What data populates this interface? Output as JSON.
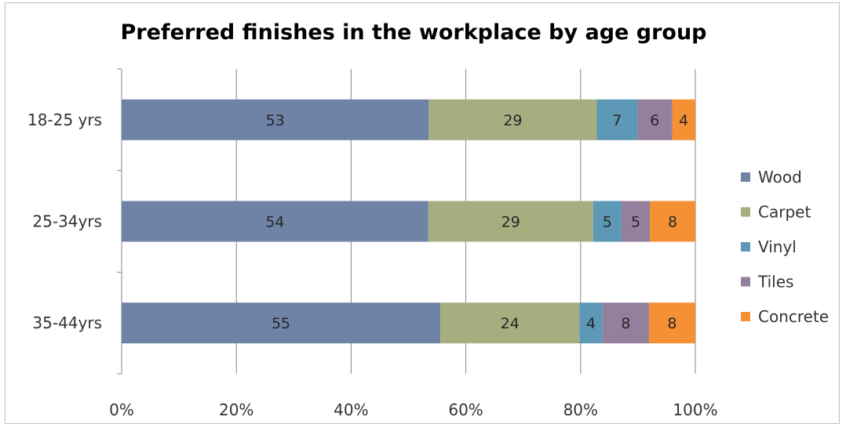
{
  "chart_data": {
    "type": "bar",
    "orientation": "horizontal",
    "stacked": "percent",
    "title": "Preferred finishes in the workplace by age group",
    "xlabel": "",
    "ylabel": "",
    "xlim": [
      0,
      100
    ],
    "x_ticks": [
      "0%",
      "20%",
      "40%",
      "60%",
      "80%",
      "100%"
    ],
    "categories": [
      "18-25 yrs",
      "25-34yrs",
      "35-44yrs"
    ],
    "series": [
      {
        "name": "Wood",
        "color": "#6f83a6",
        "values": [
          53,
          54,
          55
        ]
      },
      {
        "name": "Carpet",
        "color": "#a6ae80",
        "values": [
          29,
          29,
          24
        ]
      },
      {
        "name": "Vinyl",
        "color": "#5d98b7",
        "values": [
          7,
          5,
          4
        ]
      },
      {
        "name": "Tiles",
        "color": "#94809d",
        "values": [
          6,
          5,
          8
        ]
      },
      {
        "name": "Concrete",
        "color": "#f59134",
        "values": [
          4,
          8,
          8
        ]
      }
    ],
    "grid": true,
    "legend_position": "right"
  }
}
